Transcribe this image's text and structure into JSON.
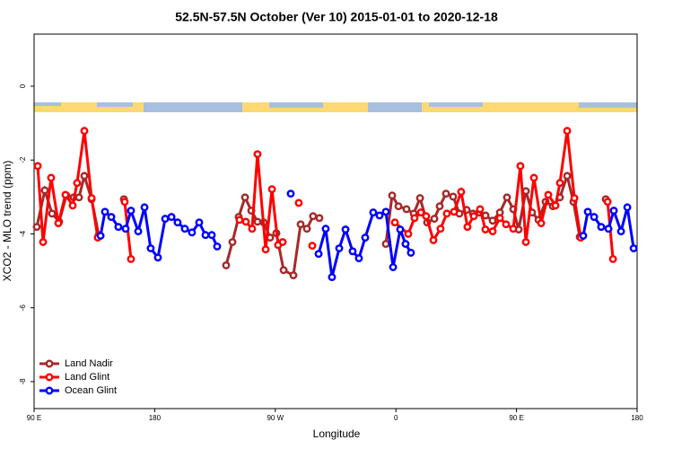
{
  "chart_data": {
    "type": "line",
    "title": "52.5N-57.5N October (Ver 10)   2015-01-01 to 2020-12-18",
    "x_label": "Longitude",
    "y_label": "XCO2 - MLO trend (ppm)",
    "xlim": [
      90,
      540
    ],
    "xticks": [
      {
        "value": 90,
        "label": "90 E"
      },
      180,
      {
        "value": 270,
        "label": "90 W"
      },
      {
        "value": 360,
        "label": "0"
      },
      {
        "value": 450,
        "label": "90 E"
      },
      {
        "value": 540,
        "label": "180"
      }
    ],
    "ylim": [
      -8.73,
      1.41
    ],
    "yticks": [
      0,
      -2,
      -4,
      -6,
      -8
    ],
    "legend": "bottom-left",
    "series": [
      {
        "name": "Land Nadir",
        "color": "#a52a2a",
        "x": [
          92.0,
          98.0,
          103.4,
          108.7,
          114.1,
          119.5,
          123.5,
          127.5,
          132.9,
          138.2,
          null,
          157.0,
          null,
          233.3,
          238.0,
          242.7,
          247.4,
          252.1,
          256.7,
          261.4,
          266.1,
          270.8,
          276.2,
          283.5,
          288.9,
          293.6,
          298.2,
          302.9,
          null,
          352.5,
          357.2,
          361.9,
          367.9,
          373.3,
          378.0,
          383.3,
          388.7,
          392.7,
          397.4,
          402.7,
          407.4,
          412.8,
          417.5,
          422.2,
          426.9,
          432.2,
          437.6,
          442.9,
          447.6,
          451.6,
          457.0,
          461.6,
          466.4,
          471.7,
          477.1,
          482.4,
          487.8,
          492.5,
          497.2,
          null,
          516.6
        ],
        "values": [
          -3.81,
          -2.82,
          -3.45,
          -3.67,
          -2.96,
          -3.01,
          -3.01,
          -2.43,
          -3.06,
          -4.03,
          null,
          -3.06,
          null,
          -4.85,
          -4.22,
          -3.54,
          -3.01,
          -3.37,
          -3.67,
          -3.69,
          -4.1,
          -3.98,
          -4.98,
          -5.12,
          -3.74,
          -3.86,
          -3.52,
          -3.57,
          null,
          -4.27,
          -2.96,
          -3.25,
          -3.33,
          -3.45,
          -3.03,
          -3.69,
          -3.59,
          -3.25,
          -2.91,
          -2.99,
          -3.45,
          -3.35,
          -3.45,
          -3.42,
          -3.5,
          -3.64,
          -3.42,
          -3.01,
          -3.33,
          -3.88,
          -2.84,
          -3.42,
          -3.62,
          -3.13,
          -3.25,
          -3.01,
          -2.43,
          -3.13,
          -4.08,
          null,
          -3.06
        ]
      },
      {
        "name": "Land Glint",
        "color": "#ff0000",
        "x": [
          92.7,
          96.7,
          102.7,
          108.1,
          113.4,
          118.8,
          122.1,
          127.5,
          132.9,
          137.5,
          null,
          157.6,
          162.3,
          null,
          243.3,
          248.0,
          252.7,
          256.7,
          262.8,
          267.5,
          272.1,
          275.5,
          null,
          287.5,
          null,
          297.6,
          null,
          359.2,
          369.2,
          373.9,
          378.6,
          382.6,
          388.0,
          393.3,
          398.0,
          403.4,
          408.7,
          413.4,
          418.1,
          422.8,
          426.8,
          432.2,
          437.6,
          442.2,
          447.6,
          452.9,
          457.0,
          463.0,
          468.4,
          473.7,
          479.1,
          482.4,
          487.8,
          493.2,
          497.9,
          null,
          518.0,
          522.0
        ],
        "values": [
          -2.16,
          -4.22,
          -2.48,
          -3.71,
          -2.94,
          -3.23,
          -2.62,
          -1.21,
          -3.03,
          -4.1,
          null,
          -3.13,
          -4.68,
          null,
          -3.62,
          -3.67,
          -3.86,
          -1.84,
          -4.42,
          -2.79,
          -4.3,
          -4.22,
          null,
          -3.16,
          null,
          -4.32,
          null,
          -3.69,
          -4.0,
          -3.57,
          -3.42,
          -3.52,
          -4.17,
          -3.86,
          -3.45,
          -3.4,
          -2.86,
          -3.81,
          -3.52,
          -3.33,
          -3.88,
          -3.93,
          -3.57,
          -3.74,
          -3.86,
          -2.16,
          -4.22,
          -2.48,
          -3.71,
          -2.94,
          -3.23,
          -2.62,
          -1.21,
          -3.03,
          -4.1,
          null,
          -3.13,
          -4.68
        ]
      },
      {
        "name": "Ocean Glint",
        "color": "#0000ff",
        "x": [
          139.6,
          142.9,
          147.6,
          152.9,
          158.3,
          162.3,
          167.7,
          172.4,
          177.0,
          182.4,
          187.8,
          192.5,
          197.1,
          202.5,
          207.8,
          213.2,
          217.9,
          222.6,
          226.6,
          null,
          281.5,
          null,
          302.3,
          307.6,
          312.3,
          317.7,
          322.4,
          327.7,
          332.4,
          337.1,
          343.1,
          347.8,
          352.5,
          357.9,
          363.2,
          367.2,
          371.2,
          null,
          499.8,
          503.2,
          507.9,
          513.2,
          518.6,
          522.6,
          528.0,
          532.7,
          537.4
        ],
        "values": [
          -4.05,
          -3.4,
          -3.54,
          -3.81,
          -3.86,
          -3.37,
          -3.93,
          -3.28,
          -4.39,
          -4.64,
          -3.59,
          -3.54,
          -3.69,
          -3.86,
          -3.96,
          -3.69,
          -4.03,
          -4.03,
          -4.34,
          null,
          -2.91,
          null,
          -4.54,
          -3.86,
          -5.17,
          -4.39,
          -3.88,
          -4.47,
          -4.66,
          -4.1,
          -3.42,
          -3.5,
          -3.4,
          -4.9,
          -3.88,
          -4.27,
          -4.51,
          null,
          -4.05,
          -3.4,
          -3.54,
          -3.81,
          -3.86,
          -3.37,
          -3.93,
          -3.28,
          -4.39
        ]
      }
    ]
  }
}
